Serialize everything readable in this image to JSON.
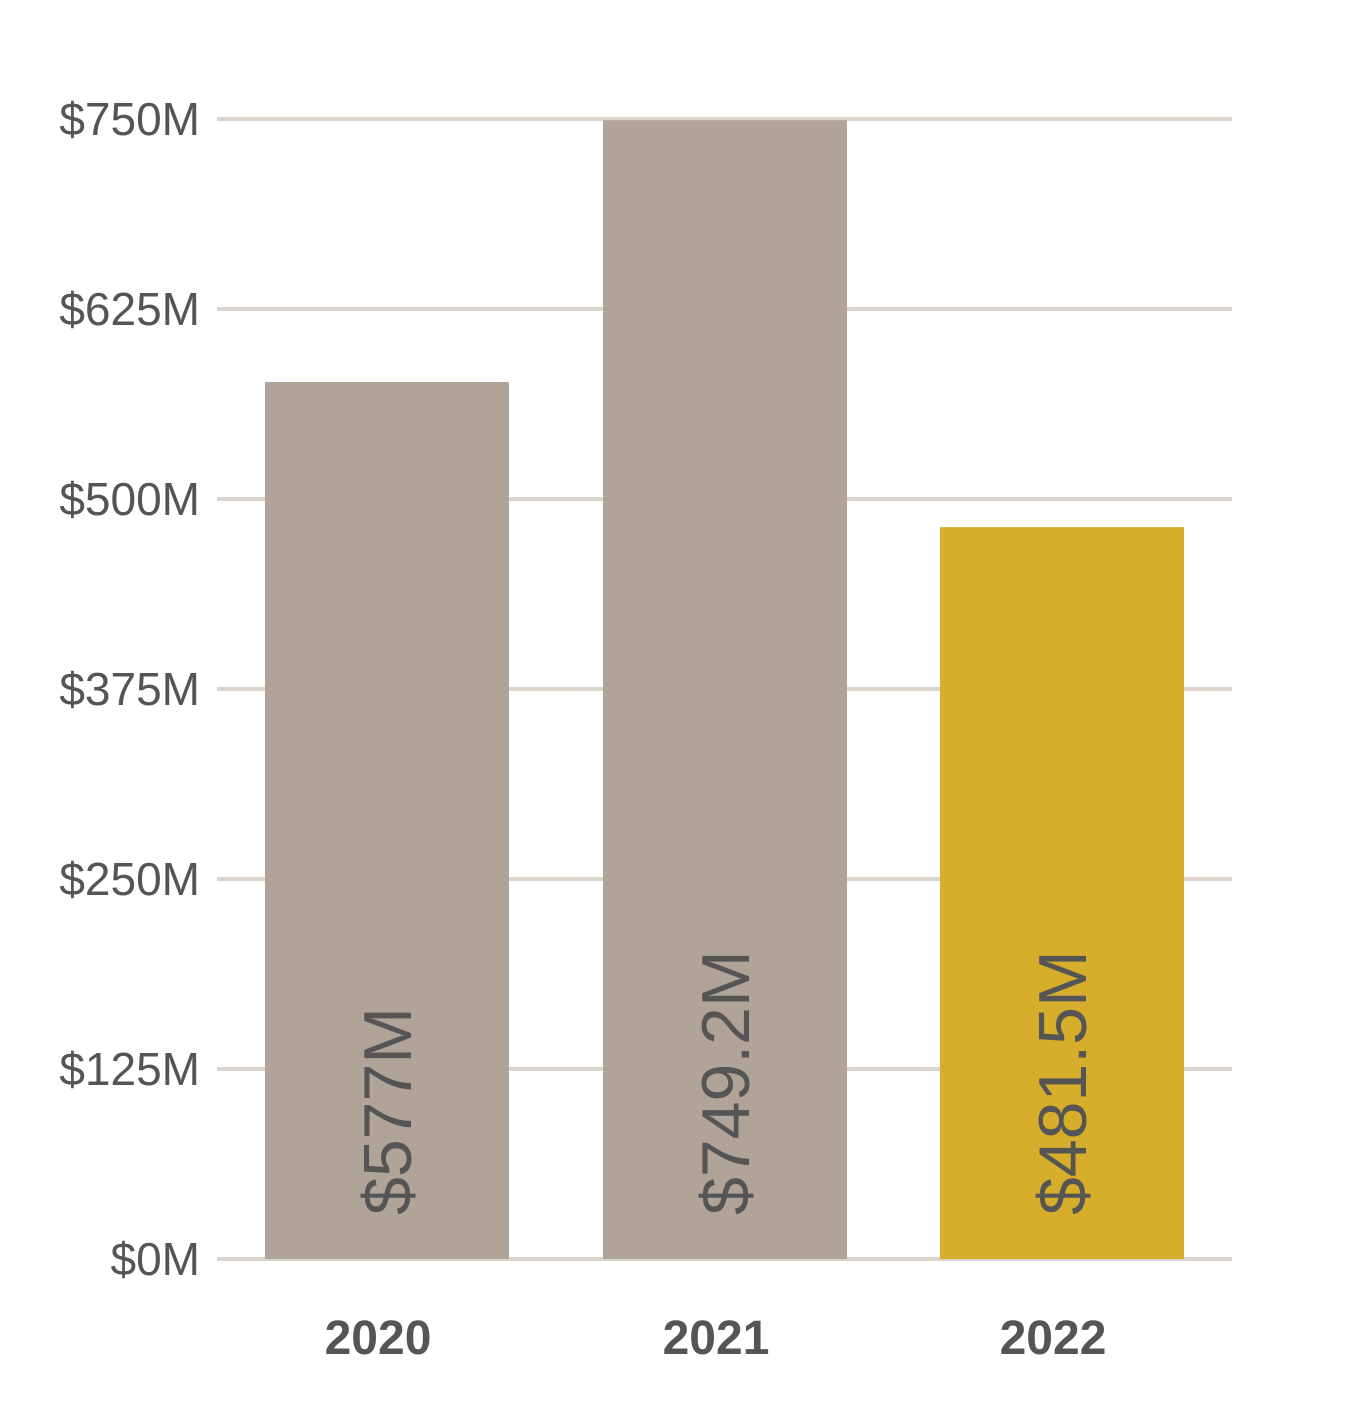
{
  "chart_data": {
    "type": "bar",
    "categories": [
      "2020",
      "2021",
      "2022"
    ],
    "values": [
      577,
      749.2,
      481.5
    ],
    "value_labels": [
      "$577M",
      "$749.2M",
      "$481.5M"
    ],
    "bar_colors": [
      "#b0a498",
      "#b0a498",
      "#d6ae2b"
    ],
    "grid_color": "#dbd4cd",
    "ylim": [
      0,
      750
    ],
    "yticks": [
      0,
      125,
      250,
      375,
      500,
      625,
      750
    ],
    "ytick_labels": [
      "$0M",
      "$125M",
      "$250M",
      "$375M",
      "$500M",
      "$625M",
      "$750M"
    ],
    "grid": true,
    "legend": "none"
  }
}
